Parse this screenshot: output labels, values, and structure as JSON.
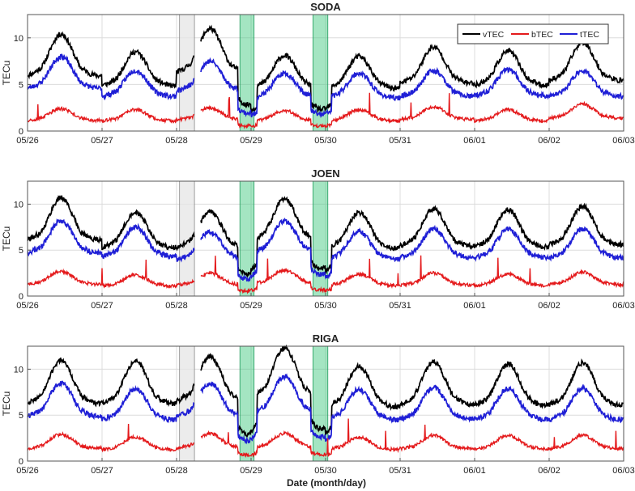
{
  "figure": {
    "xlabel": "Date (month/day)",
    "ylabel": "TECu",
    "legend": [
      "vTEC",
      "bTEC",
      "tTEC"
    ]
  },
  "colors": {
    "vTEC": "#000000",
    "bTEC": "#e41a1c",
    "tTEC": "#1f1fd6",
    "gap_band": "#e6e6e6",
    "event_band": "#35c678"
  },
  "chart_data": [
    {
      "type": "line",
      "title": "SODA",
      "xlabel": "",
      "ylabel": "TECu",
      "xlim": [
        0,
        8
      ],
      "ylim": [
        0,
        12.5
      ],
      "x_ticks": [
        "05/26",
        "05/27",
        "05/28",
        "05/29",
        "05/30",
        "05/31",
        "06/01",
        "06/02",
        "06/03"
      ],
      "y_ticks": [
        0,
        5,
        10
      ],
      "legend_position": "top-right",
      "shaded_intervals_days": {
        "gray": [
          [
            2.04,
            2.24
          ]
        ],
        "green": [
          [
            2.85,
            3.04
          ],
          [
            3.83,
            4.03
          ]
        ]
      },
      "daily_peaks": {
        "vTEC": [
          10.4,
          8.5,
          11,
          8.1,
          8.0,
          9.0,
          8.6,
          9.5
        ],
        "tTEC": [
          8.0,
          6.5,
          7.5,
          6.2,
          6.2,
          6.5,
          6.6,
          6.5
        ],
        "bTEC": [
          2.4,
          2.3,
          2.5,
          2.2,
          2.3,
          2.6,
          2.3,
          2.9
        ]
      }
    },
    {
      "type": "line",
      "title": "JOEN",
      "xlabel": "",
      "ylabel": "TECu",
      "xlim": [
        0,
        8
      ],
      "ylim": [
        0,
        12.5
      ],
      "x_ticks": [
        "05/26",
        "05/27",
        "05/28",
        "05/29",
        "05/30",
        "05/31",
        "06/01",
        "06/02",
        "06/03"
      ],
      "y_ticks": [
        0,
        5,
        10
      ],
      "shaded_intervals_days": {
        "gray": [
          [
            2.04,
            2.24
          ]
        ],
        "green": [
          [
            2.85,
            3.04
          ],
          [
            3.83,
            4.03
          ]
        ]
      },
      "daily_peaks": {
        "vTEC": [
          10.7,
          9.2,
          9.2,
          10.6,
          9.1,
          9.5,
          9.4,
          9.8
        ],
        "tTEC": [
          8.2,
          7.5,
          7.0,
          8.2,
          7.0,
          7.3,
          7.3,
          7.3
        ],
        "bTEC": [
          2.7,
          2.3,
          2.5,
          2.8,
          2.4,
          2.5,
          2.4,
          2.6
        ]
      }
    },
    {
      "type": "line",
      "title": "RIGA",
      "xlabel": "Date (month/day)",
      "ylabel": "TECu",
      "xlim": [
        0,
        8
      ],
      "ylim": [
        0,
        12.5
      ],
      "x_ticks": [
        "05/26",
        "05/27",
        "05/28",
        "05/29",
        "05/30",
        "05/31",
        "06/01",
        "06/02",
        "06/03"
      ],
      "y_ticks": [
        0,
        5,
        10
      ],
      "shaded_intervals_days": {
        "gray": [
          [
            2.04,
            2.24
          ]
        ],
        "green": [
          [
            2.85,
            3.04
          ],
          [
            3.83,
            4.03
          ]
        ]
      },
      "daily_peaks": {
        "vTEC": [
          11.0,
          10.9,
          11.4,
          12.3,
          10.3,
          10.8,
          10.6,
          10.7
        ],
        "tTEC": [
          8.5,
          7.9,
          8.5,
          9.2,
          7.8,
          8.0,
          7.9,
          7.9
        ],
        "bTEC": [
          2.9,
          2.6,
          3.0,
          3.0,
          2.6,
          2.8,
          2.8,
          2.8
        ]
      }
    }
  ]
}
